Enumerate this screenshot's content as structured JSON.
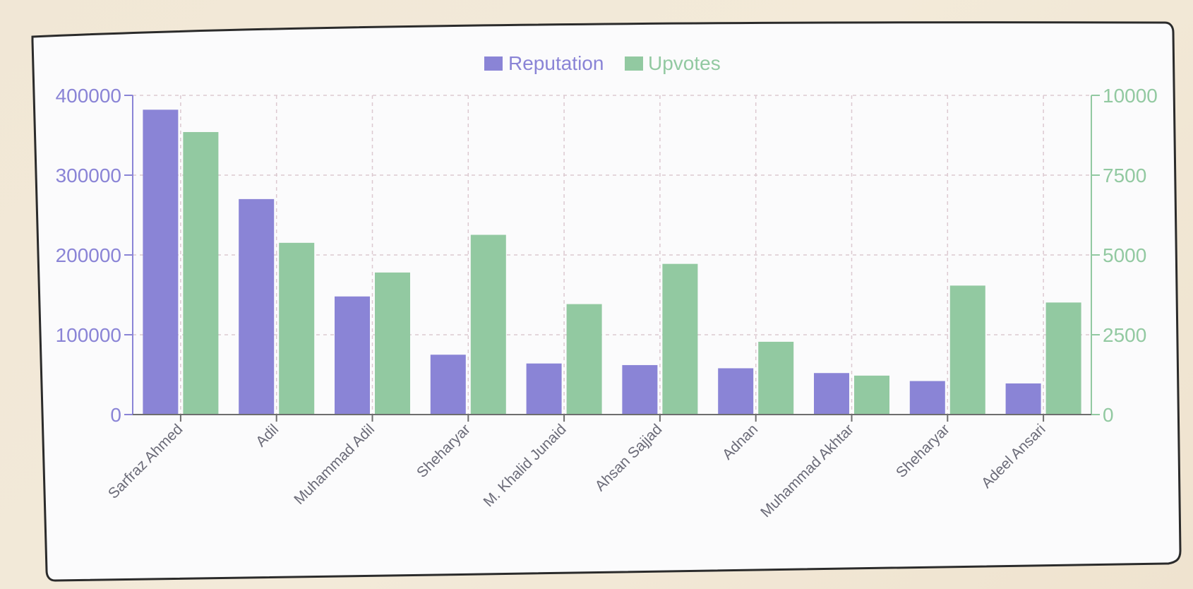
{
  "colors": {
    "background": "#f1e7d6",
    "card": "#fbfbfc",
    "reputation": "#8a84d6",
    "upvotes": "#92c9a1",
    "grid": "#dcc9d0",
    "xlabel": "#6b6b78"
  },
  "chart_data": {
    "type": "bar",
    "title": "",
    "categories": [
      "Sarfraz Ahmed",
      "Adil",
      "Muhammad Adil",
      "Sheharyar",
      "M. Khalid Junaid",
      "Ahsan Sajjad",
      "Adnan",
      "Muhammad Akhtar",
      "Sheharyar",
      "Adeel Ansari"
    ],
    "series": [
      {
        "name": "Reputation",
        "axis": "left",
        "color": "#8a84d6",
        "values": [
          382000,
          270000,
          148000,
          75000,
          64000,
          62000,
          58000,
          52000,
          42000,
          39000
        ]
      },
      {
        "name": "Upvotes",
        "axis": "right",
        "color": "#92c9a1",
        "values": [
          8850,
          5380,
          4450,
          5630,
          3460,
          4720,
          2280,
          1220,
          4040,
          3510
        ]
      }
    ],
    "y_left": {
      "range": [
        0,
        400000
      ],
      "ticks": [
        "0",
        "100000",
        "200000",
        "300000",
        "400000"
      ]
    },
    "y_right": {
      "range": [
        0,
        10000
      ],
      "ticks": [
        "0",
        "2500",
        "5000",
        "7500",
        "10000"
      ]
    },
    "grid": true,
    "legend_position": "top-center"
  }
}
